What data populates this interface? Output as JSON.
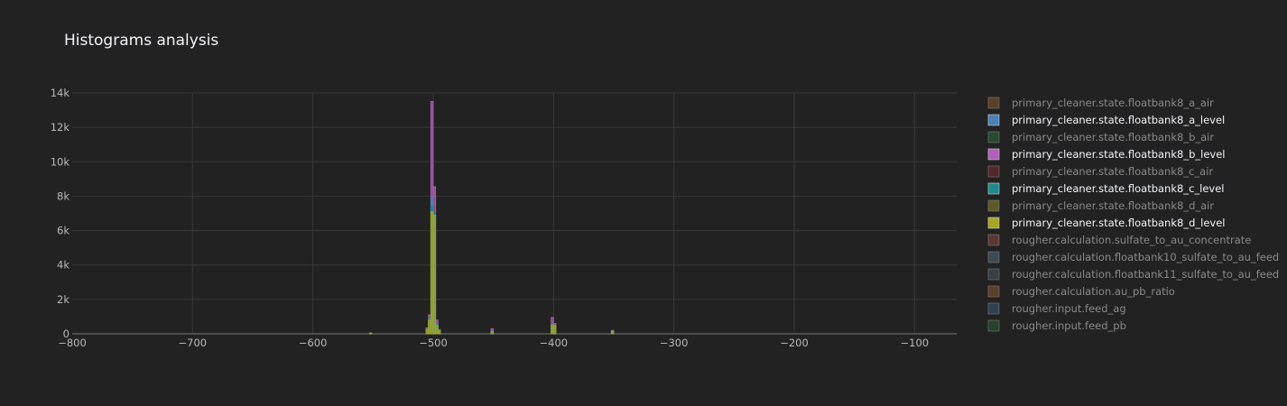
{
  "chart_data": {
    "type": "bar",
    "title": "Histograms analysis",
    "xlim": [
      -800,
      -65
    ],
    "ylim": [
      0,
      14000
    ],
    "x_ticks": [
      -800,
      -700,
      -600,
      -500,
      -400,
      -300,
      -200,
      -100
    ],
    "x_tick_labels": [
      "−800",
      "−700",
      "−600",
      "−500",
      "−400",
      "−300",
      "−200",
      "−100"
    ],
    "y_ticks": [
      0,
      2000,
      4000,
      6000,
      8000,
      10000,
      12000,
      14000
    ],
    "y_tick_labels": [
      "0",
      "2k",
      "4k",
      "6k",
      "8k",
      "10k",
      "12k",
      "14k"
    ],
    "grid": true,
    "legend_position": "right",
    "series": [
      {
        "name": "primary_cleaner.state.floatbank8_a_air",
        "color": "#8c5a2e",
        "visible": false,
        "bins": []
      },
      {
        "name": "primary_cleaner.state.floatbank8_a_level",
        "color": "#4c80b8",
        "visible": true,
        "bins": [
          [
            -552,
            50
          ],
          [
            -505,
            300
          ],
          [
            -503,
            900
          ],
          [
            -501,
            7950
          ],
          [
            -499,
            7000
          ],
          [
            -497,
            600
          ],
          [
            -495,
            200
          ],
          [
            -451,
            150
          ],
          [
            -401,
            500
          ],
          [
            -399,
            450
          ],
          [
            -351,
            120
          ]
        ]
      },
      {
        "name": "primary_cleaner.state.floatbank8_b_air",
        "color": "#2e6a45",
        "visible": false,
        "bins": []
      },
      {
        "name": "primary_cleaner.state.floatbank8_b_level",
        "color": "#b060b8",
        "visible": true,
        "bins": [
          [
            -552,
            60
          ],
          [
            -505,
            350
          ],
          [
            -503,
            1100
          ],
          [
            -501,
            13500
          ],
          [
            -499,
            8550
          ],
          [
            -497,
            800
          ],
          [
            -495,
            250
          ],
          [
            -451,
            300
          ],
          [
            -401,
            950
          ],
          [
            -399,
            600
          ],
          [
            -351,
            200
          ]
        ]
      },
      {
        "name": "primary_cleaner.state.floatbank8_c_air",
        "color": "#7a2e35",
        "visible": false,
        "bins": []
      },
      {
        "name": "primary_cleaner.state.floatbank8_c_level",
        "color": "#1f8a8a",
        "visible": true,
        "bins": [
          [
            -552,
            45
          ],
          [
            -505,
            280
          ],
          [
            -503,
            850
          ],
          [
            -501,
            7400
          ],
          [
            -499,
            7100
          ],
          [
            -497,
            550
          ],
          [
            -495,
            180
          ],
          [
            -451,
            160
          ],
          [
            -401,
            550
          ],
          [
            -399,
            500
          ],
          [
            -351,
            130
          ]
        ]
      },
      {
        "name": "primary_cleaner.state.floatbank8_d_air",
        "color": "#8c8c2e",
        "visible": false,
        "bins": []
      },
      {
        "name": "primary_cleaner.state.floatbank8_d_level",
        "color": "#a6a622",
        "visible": true,
        "bins": [
          [
            -552,
            40
          ],
          [
            -505,
            260
          ],
          [
            -503,
            800
          ],
          [
            -501,
            7100
          ],
          [
            -499,
            6900
          ],
          [
            -497,
            500
          ],
          [
            -495,
            170
          ],
          [
            -451,
            140
          ],
          [
            -401,
            520
          ],
          [
            -399,
            480
          ],
          [
            -351,
            150
          ]
        ]
      },
      {
        "name": "rougher.calculation.sulfate_to_au_concentrate",
        "color": "#8c4a45",
        "visible": false,
        "bins": []
      },
      {
        "name": "rougher.calculation.floatbank10_sulfate_to_au_feed",
        "color": "#5a6a78",
        "visible": false,
        "bins": []
      },
      {
        "name": "rougher.calculation.floatbank11_sulfate_to_au_feed",
        "color": "#4a5a62",
        "visible": false,
        "bins": []
      },
      {
        "name": "rougher.calculation.au_pb_ratio",
        "color": "#8c5a2e",
        "visible": false,
        "bins": []
      },
      {
        "name": "rougher.input.feed_ag",
        "color": "#3a5a7a",
        "visible": false,
        "bins": []
      },
      {
        "name": "rougher.input.feed_pb",
        "color": "#2e5a3a",
        "visible": false,
        "bins": []
      }
    ]
  }
}
